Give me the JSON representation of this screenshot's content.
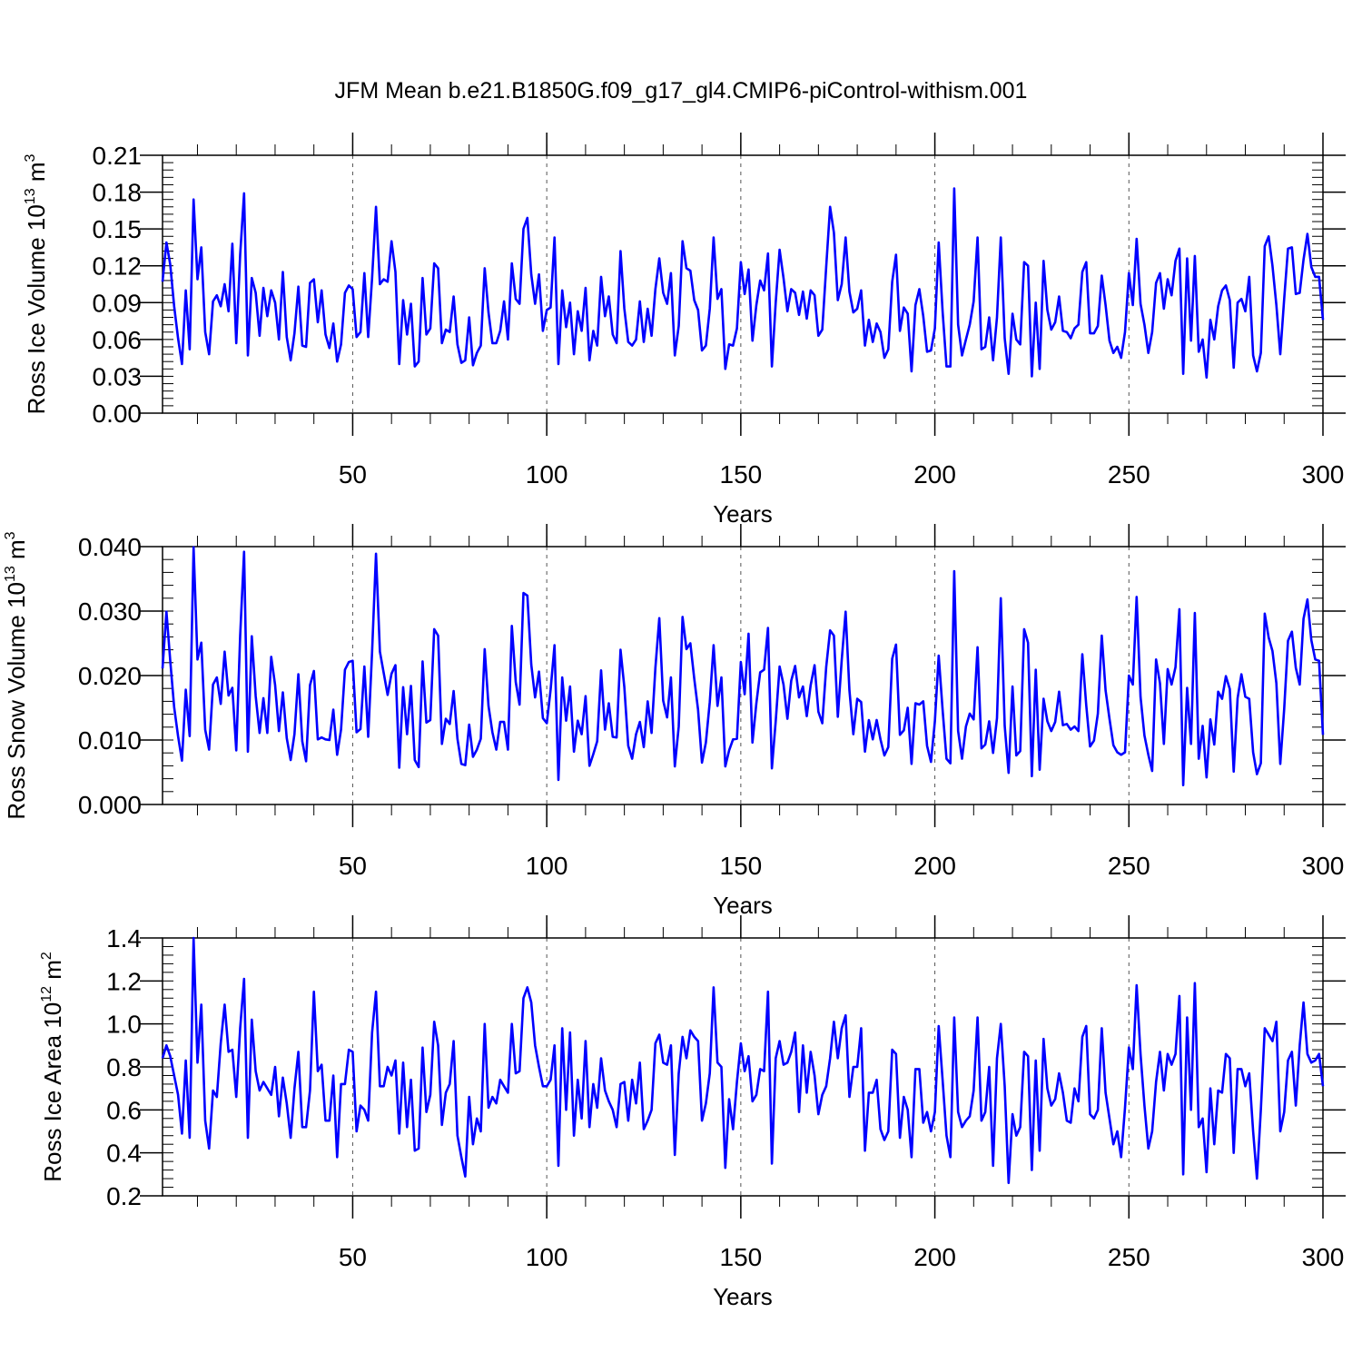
{
  "title": "JFM Mean b.e21.B1850G.f09_g17_gl4.CMIP6-piControl-withism.001",
  "chart_data": [
    {
      "type": "line",
      "title": "JFM Mean b.e21.B1850G.f09_g17_gl4.CMIP6-piControl-withism.001",
      "xlabel": "Years",
      "ylabel": "Ross Ice Volume 10",
      "ylabel_exp": "13",
      "ylabel_unit": " m",
      "ylabel_unit_exp": "3",
      "xlim": [
        1,
        300
      ],
      "ylim": [
        0,
        0.21
      ],
      "xticks": [
        50,
        100,
        150,
        200,
        250,
        300
      ],
      "yticks": [
        "0.00",
        "0.03",
        "0.06",
        "0.09",
        "0.12",
        "0.15",
        "0.18",
        "0.21"
      ],
      "vgrid": [
        50,
        100,
        150,
        200,
        250
      ],
      "color": "#0000ff",
      "start_year": 1,
      "values": [
        0.107,
        0.139,
        0.121,
        0.087,
        0.061,
        0.04,
        0.1,
        0.052,
        0.174,
        0.109,
        0.135,
        0.066,
        0.048,
        0.091,
        0.096,
        0.087,
        0.105,
        0.083,
        0.138,
        0.057,
        0.129,
        0.179,
        0.047,
        0.11,
        0.098,
        0.063,
        0.102,
        0.079,
        0.1,
        0.09,
        0.06,
        0.115,
        0.062,
        0.043,
        0.065,
        0.103,
        0.055,
        0.054,
        0.106,
        0.109,
        0.074,
        0.1,
        0.064,
        0.053,
        0.073,
        0.042,
        0.056,
        0.098,
        0.104,
        0.101,
        0.062,
        0.066,
        0.114,
        0.062,
        0.11,
        0.168,
        0.105,
        0.109,
        0.107,
        0.14,
        0.115,
        0.04,
        0.092,
        0.064,
        0.089,
        0.038,
        0.042,
        0.11,
        0.064,
        0.069,
        0.122,
        0.118,
        0.057,
        0.068,
        0.066,
        0.095,
        0.056,
        0.041,
        0.043,
        0.078,
        0.039,
        0.049,
        0.055,
        0.118,
        0.082,
        0.057,
        0.057,
        0.067,
        0.091,
        0.06,
        0.122,
        0.093,
        0.089,
        0.15,
        0.159,
        0.113,
        0.089,
        0.113,
        0.067,
        0.084,
        0.086,
        0.143,
        0.04,
        0.1,
        0.07,
        0.09,
        0.048,
        0.083,
        0.067,
        0.102,
        0.043,
        0.067,
        0.055,
        0.111,
        0.079,
        0.095,
        0.064,
        0.057,
        0.132,
        0.085,
        0.058,
        0.055,
        0.06,
        0.091,
        0.058,
        0.085,
        0.063,
        0.101,
        0.126,
        0.098,
        0.089,
        0.114,
        0.047,
        0.071,
        0.14,
        0.118,
        0.116,
        0.092,
        0.084,
        0.051,
        0.055,
        0.085,
        0.143,
        0.093,
        0.101,
        0.036,
        0.056,
        0.055,
        0.069,
        0.123,
        0.097,
        0.117,
        0.059,
        0.088,
        0.108,
        0.1,
        0.13,
        0.038,
        0.09,
        0.133,
        0.11,
        0.083,
        0.101,
        0.098,
        0.08,
        0.099,
        0.077,
        0.1,
        0.096,
        0.063,
        0.068,
        0.119,
        0.168,
        0.147,
        0.092,
        0.105,
        0.143,
        0.099,
        0.082,
        0.085,
        0.1,
        0.055,
        0.076,
        0.058,
        0.073,
        0.066,
        0.045,
        0.052,
        0.107,
        0.129,
        0.067,
        0.086,
        0.081,
        0.034,
        0.088,
        0.101,
        0.079,
        0.05,
        0.051,
        0.069,
        0.139,
        0.083,
        0.038,
        0.038,
        0.183,
        0.072,
        0.047,
        0.06,
        0.072,
        0.091,
        0.143,
        0.052,
        0.054,
        0.078,
        0.043,
        0.078,
        0.143,
        0.061,
        0.032,
        0.081,
        0.06,
        0.056,
        0.123,
        0.12,
        0.03,
        0.09,
        0.036,
        0.124,
        0.084,
        0.068,
        0.074,
        0.095,
        0.067,
        0.066,
        0.061,
        0.069,
        0.072,
        0.115,
        0.123,
        0.065,
        0.065,
        0.071,
        0.112,
        0.088,
        0.059,
        0.049,
        0.054,
        0.045,
        0.066,
        0.114,
        0.088,
        0.142,
        0.089,
        0.072,
        0.049,
        0.066,
        0.106,
        0.114,
        0.085,
        0.109,
        0.096,
        0.124,
        0.134,
        0.032,
        0.126,
        0.059,
        0.128,
        0.05,
        0.06,
        0.029,
        0.076,
        0.06,
        0.087,
        0.1,
        0.104,
        0.092,
        0.037,
        0.09,
        0.093,
        0.083,
        0.111,
        0.047,
        0.034,
        0.049,
        0.136,
        0.144,
        0.12,
        0.088,
        0.048,
        0.093,
        0.134,
        0.135,
        0.097,
        0.098,
        0.125,
        0.146,
        0.119,
        0.111,
        0.111,
        0.076
      ]
    },
    {
      "type": "line",
      "xlabel": "Years",
      "ylabel": "Ross Snow Volume 10",
      "ylabel_exp": "13",
      "ylabel_unit": " m",
      "ylabel_unit_exp": "3",
      "xlim": [
        1,
        300
      ],
      "ylim": [
        0,
        0.04
      ],
      "xticks": [
        50,
        100,
        150,
        200,
        250,
        300
      ],
      "yticks": [
        "0.000",
        "0.010",
        "0.020",
        "0.030",
        "0.040"
      ],
      "vgrid": [
        50,
        100,
        150,
        200,
        250
      ],
      "color": "#0000ff",
      "start_year": 1,
      "values": [
        0.0211,
        0.0299,
        0.0223,
        0.0151,
        0.0106,
        0.0068,
        0.0178,
        0.0106,
        0.0399,
        0.0225,
        0.0251,
        0.0116,
        0.0085,
        0.0186,
        0.0197,
        0.0156,
        0.0237,
        0.0169,
        0.0181,
        0.0084,
        0.0262,
        0.0392,
        0.0082,
        0.0261,
        0.0168,
        0.0111,
        0.0165,
        0.0111,
        0.0229,
        0.0185,
        0.0114,
        0.0174,
        0.0103,
        0.0069,
        0.0109,
        0.0202,
        0.0098,
        0.0067,
        0.0185,
        0.0207,
        0.0101,
        0.0104,
        0.0101,
        0.01,
        0.0147,
        0.0077,
        0.0116,
        0.0209,
        0.0221,
        0.0223,
        0.0112,
        0.0117,
        0.0214,
        0.0105,
        0.0237,
        0.0389,
        0.0237,
        0.0204,
        0.017,
        0.0203,
        0.0216,
        0.0057,
        0.0182,
        0.0109,
        0.0184,
        0.0069,
        0.0058,
        0.0222,
        0.0127,
        0.0131,
        0.0272,
        0.0262,
        0.0094,
        0.0133,
        0.0125,
        0.0176,
        0.0102,
        0.0063,
        0.0061,
        0.0124,
        0.0074,
        0.0085,
        0.0102,
        0.0241,
        0.0153,
        0.0112,
        0.0085,
        0.0128,
        0.0128,
        0.0085,
        0.0277,
        0.019,
        0.0155,
        0.0328,
        0.0324,
        0.0217,
        0.0166,
        0.0206,
        0.0134,
        0.0126,
        0.0178,
        0.0247,
        0.0038,
        0.0197,
        0.013,
        0.0183,
        0.0082,
        0.013,
        0.0109,
        0.0168,
        0.006,
        0.0078,
        0.0098,
        0.0208,
        0.0116,
        0.0157,
        0.0105,
        0.0104,
        0.024,
        0.0182,
        0.0091,
        0.0071,
        0.0109,
        0.0128,
        0.0089,
        0.016,
        0.0111,
        0.0212,
        0.0289,
        0.0161,
        0.0135,
        0.0197,
        0.0059,
        0.0121,
        0.0291,
        0.0241,
        0.025,
        0.0195,
        0.0147,
        0.0065,
        0.0096,
        0.0159,
        0.0247,
        0.0153,
        0.0197,
        0.0059,
        0.0084,
        0.0101,
        0.0102,
        0.0221,
        0.0171,
        0.0265,
        0.0096,
        0.0157,
        0.0205,
        0.0209,
        0.0274,
        0.0056,
        0.0129,
        0.0214,
        0.0186,
        0.0133,
        0.0192,
        0.0215,
        0.0166,
        0.0183,
        0.0137,
        0.0185,
        0.0216,
        0.0144,
        0.0126,
        0.0213,
        0.027,
        0.0262,
        0.0136,
        0.0224,
        0.0299,
        0.0177,
        0.0109,
        0.0164,
        0.0159,
        0.0082,
        0.0131,
        0.0101,
        0.0131,
        0.0101,
        0.0076,
        0.0089,
        0.0226,
        0.0248,
        0.0108,
        0.0115,
        0.015,
        0.0063,
        0.0157,
        0.0155,
        0.016,
        0.0091,
        0.0066,
        0.0129,
        0.0231,
        0.0147,
        0.0071,
        0.0064,
        0.0362,
        0.0114,
        0.0071,
        0.0121,
        0.0141,
        0.0132,
        0.0244,
        0.0087,
        0.0093,
        0.0129,
        0.008,
        0.0134,
        0.032,
        0.0122,
        0.0049,
        0.0183,
        0.0076,
        0.0083,
        0.0272,
        0.0251,
        0.0044,
        0.0209,
        0.0054,
        0.0164,
        0.0129,
        0.0114,
        0.0128,
        0.0175,
        0.0123,
        0.0125,
        0.0116,
        0.0121,
        0.0114,
        0.0233,
        0.0154,
        0.009,
        0.0099,
        0.0141,
        0.0262,
        0.0177,
        0.0133,
        0.0092,
        0.0081,
        0.0077,
        0.0081,
        0.02,
        0.0186,
        0.0322,
        0.0167,
        0.0107,
        0.0077,
        0.0052,
        0.0225,
        0.0188,
        0.0094,
        0.021,
        0.0186,
        0.0213,
        0.0303,
        0.003,
        0.0181,
        0.0094,
        0.0297,
        0.0071,
        0.0122,
        0.0042,
        0.0132,
        0.0093,
        0.0175,
        0.0164,
        0.0199,
        0.0179,
        0.0051,
        0.0165,
        0.0202,
        0.0167,
        0.0164,
        0.0081,
        0.0047,
        0.0064,
        0.0296,
        0.0259,
        0.0238,
        0.0188,
        0.0063,
        0.0148,
        0.0254,
        0.0268,
        0.0212,
        0.0186,
        0.0288,
        0.0318,
        0.0255,
        0.0225,
        0.0223,
        0.0108
      ]
    },
    {
      "type": "line",
      "xlabel": "Years",
      "ylabel": "Ross Ice Area 10",
      "ylabel_exp": "12",
      "ylabel_unit": " m",
      "ylabel_unit_exp": "2",
      "xlim": [
        1,
        300
      ],
      "ylim": [
        0.2,
        1.4
      ],
      "xticks": [
        50,
        100,
        150,
        200,
        250,
        300
      ],
      "yticks": [
        "0.2",
        "0.4",
        "0.6",
        "0.8",
        "1.0",
        "1.2",
        "1.4"
      ],
      "vgrid": [
        50,
        100,
        150,
        200,
        250
      ],
      "color": "#0000ff",
      "start_year": 1,
      "values": [
        0.84,
        0.9,
        0.85,
        0.76,
        0.67,
        0.49,
        0.83,
        0.47,
        1.4,
        0.82,
        1.09,
        0.55,
        0.42,
        0.69,
        0.66,
        0.91,
        1.09,
        0.87,
        0.88,
        0.66,
        0.98,
        1.21,
        0.47,
        1.02,
        0.78,
        0.69,
        0.73,
        0.7,
        0.67,
        0.8,
        0.57,
        0.75,
        0.63,
        0.47,
        0.7,
        0.87,
        0.52,
        0.52,
        0.69,
        1.15,
        0.78,
        0.81,
        0.55,
        0.55,
        0.76,
        0.38,
        0.72,
        0.72,
        0.88,
        0.87,
        0.5,
        0.62,
        0.6,
        0.55,
        0.96,
        1.15,
        0.71,
        0.71,
        0.8,
        0.76,
        0.83,
        0.49,
        0.82,
        0.52,
        0.74,
        0.41,
        0.42,
        0.89,
        0.59,
        0.67,
        1.01,
        0.9,
        0.53,
        0.68,
        0.72,
        0.92,
        0.48,
        0.38,
        0.29,
        0.66,
        0.44,
        0.56,
        0.5,
        1.0,
        0.61,
        0.66,
        0.63,
        0.74,
        0.71,
        0.68,
        1.0,
        0.77,
        0.78,
        1.12,
        1.17,
        1.1,
        0.9,
        0.8,
        0.71,
        0.71,
        0.74,
        0.9,
        0.34,
        0.98,
        0.6,
        0.96,
        0.48,
        0.74,
        0.56,
        0.92,
        0.52,
        0.72,
        0.61,
        0.84,
        0.69,
        0.64,
        0.6,
        0.52,
        0.72,
        0.73,
        0.55,
        0.74,
        0.63,
        0.82,
        0.51,
        0.55,
        0.6,
        0.91,
        0.95,
        0.82,
        0.81,
        0.9,
        0.39,
        0.77,
        0.94,
        0.84,
        0.97,
        0.94,
        0.92,
        0.55,
        0.63,
        0.77,
        1.17,
        0.82,
        0.8,
        0.33,
        0.65,
        0.51,
        0.73,
        0.91,
        0.78,
        0.85,
        0.64,
        0.67,
        0.79,
        0.78,
        1.15,
        0.35,
        0.84,
        0.92,
        0.81,
        0.82,
        0.87,
        0.96,
        0.59,
        0.9,
        0.68,
        0.87,
        0.76,
        0.58,
        0.67,
        0.71,
        0.84,
        1.01,
        0.84,
        0.98,
        1.04,
        0.66,
        0.8,
        0.8,
        0.98,
        0.41,
        0.68,
        0.68,
        0.74,
        0.51,
        0.46,
        0.5,
        0.88,
        0.86,
        0.47,
        0.66,
        0.6,
        0.38,
        0.79,
        0.79,
        0.54,
        0.59,
        0.5,
        0.59,
        0.99,
        0.74,
        0.48,
        0.38,
        1.03,
        0.59,
        0.52,
        0.55,
        0.57,
        0.69,
        1.03,
        0.55,
        0.59,
        0.8,
        0.34,
        0.84,
        1.0,
        0.71,
        0.26,
        0.58,
        0.48,
        0.52,
        0.87,
        0.85,
        0.32,
        0.83,
        0.41,
        0.93,
        0.7,
        0.62,
        0.65,
        0.77,
        0.68,
        0.55,
        0.54,
        0.7,
        0.64,
        0.94,
        0.99,
        0.58,
        0.56,
        0.6,
        0.98,
        0.68,
        0.56,
        0.44,
        0.5,
        0.38,
        0.61,
        0.89,
        0.79,
        1.18,
        0.86,
        0.62,
        0.42,
        0.5,
        0.73,
        0.87,
        0.69,
        0.86,
        0.81,
        0.86,
        1.13,
        0.3,
        1.03,
        0.6,
        1.19,
        0.52,
        0.56,
        0.31,
        0.7,
        0.44,
        0.69,
        0.68,
        0.86,
        0.84,
        0.4,
        0.79,
        0.79,
        0.71,
        0.77,
        0.5,
        0.28,
        0.6,
        0.98,
        0.95,
        0.92,
        1.01,
        0.5,
        0.59,
        0.83,
        0.87,
        0.62,
        0.9,
        1.1,
        0.86,
        0.82,
        0.83,
        0.86,
        0.71
      ]
    }
  ]
}
